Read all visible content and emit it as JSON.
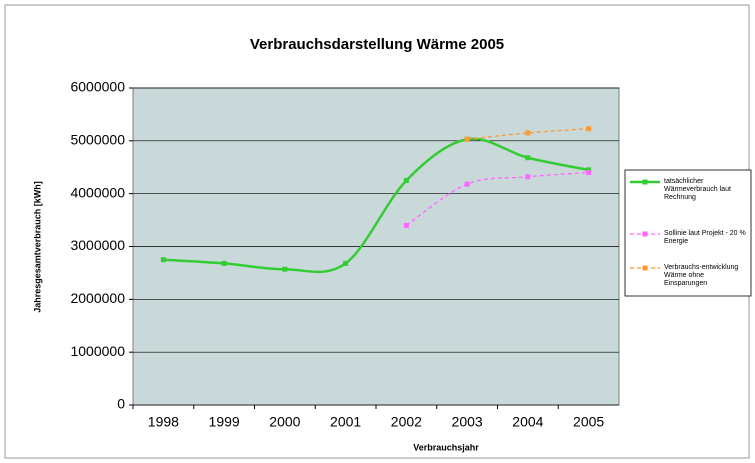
{
  "chart_data": {
    "type": "line",
    "title": "Verbrauchsdarstellung Wärme 2005",
    "x_label": "Verbrauchsjahr",
    "y_label": "Jahresgesamtverbrauch [kWh]",
    "categories": [
      "1998",
      "1999",
      "2000",
      "2001",
      "2002",
      "2003",
      "2004",
      "2005"
    ],
    "series": [
      {
        "name": "tatsächlicher Wärmeverbrauch laut Rechnung",
        "color": "#33cc33",
        "dashed": false,
        "smooth": true,
        "values": [
          2750000,
          2680000,
          2570000,
          2680000,
          4250000,
          5030000,
          4680000,
          4450000
        ]
      },
      {
        "name": "Sollinie laut Projekt - 20 % Energie",
        "color": "#ff66ff",
        "dashed": true,
        "smooth": true,
        "values": [
          null,
          null,
          null,
          null,
          3400000,
          4180000,
          4320000,
          4400000
        ]
      },
      {
        "name": "Verbrauchs-entwicklung Wärme ohne Einsparungen",
        "color": "#ff9933",
        "dashed": true,
        "smooth": true,
        "values": [
          null,
          null,
          null,
          null,
          null,
          5030000,
          5150000,
          5230000
        ]
      }
    ],
    "ylim": [
      0,
      6000000
    ],
    "yticks": [
      0,
      1000000,
      2000000,
      3000000,
      4000000,
      5000000,
      6000000
    ],
    "grid": true,
    "legend": "right"
  }
}
